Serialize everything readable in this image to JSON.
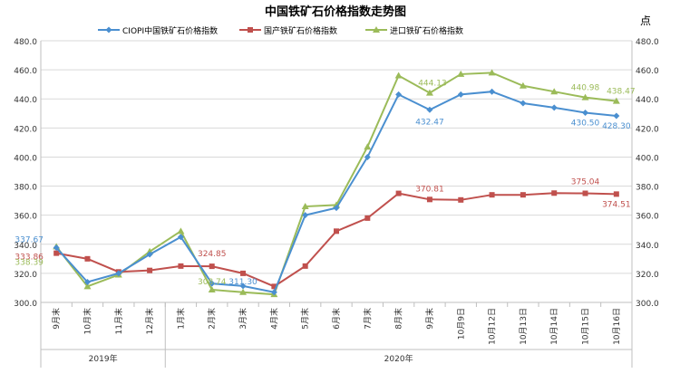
{
  "chart_data": {
    "type": "line",
    "title": "中国铁矿石价格指数走势图",
    "unit_label": "点",
    "categories": [
      "9月末",
      "10月末",
      "11月末",
      "12月末",
      "1月末",
      "2月末",
      "3月末",
      "4月末",
      "5月末",
      "6月末",
      "7月末",
      "8月末",
      "9月末",
      "10月9日",
      "10月12日",
      "10月13日",
      "10月14日",
      "10月15日",
      "10月16日"
    ],
    "year_groups": [
      {
        "label": "2019年",
        "start": 0,
        "end": 3
      },
      {
        "label": "2020年",
        "start": 4,
        "end": 18
      }
    ],
    "ylim": [
      300,
      480
    ],
    "yticks": [
      "300.0",
      "320.0",
      "340.0",
      "360.0",
      "380.0",
      "400.0",
      "420.0",
      "440.0",
      "460.0",
      "480.0"
    ],
    "grid": true,
    "legend_position": "top",
    "series": [
      {
        "name": "CIOPI中国铁矿石价格指数",
        "color": "#4a8fd0",
        "marker": "diamond",
        "values": [
          337.67,
          314,
          320,
          333,
          345,
          313,
          311.3,
          307,
          360,
          365,
          400,
          443,
          432.47,
          443,
          445,
          437,
          434,
          430.5,
          428.3
        ]
      },
      {
        "name": "国产铁矿石价格指数",
        "color": "#c0504d",
        "marker": "square",
        "values": [
          333.86,
          330,
          321,
          322,
          325,
          324.85,
          320,
          311,
          325,
          349,
          358,
          375,
          370.81,
          370.5,
          374,
          374,
          375.2,
          375.04,
          374.51
        ]
      },
      {
        "name": "进口铁矿石价格指数",
        "color": "#9bbb59",
        "marker": "triangle",
        "values": [
          338.39,
          311,
          319,
          335,
          349,
          308.74,
          307,
          305.5,
          366,
          367,
          407,
          456,
          444.13,
          457,
          458,
          449,
          445,
          440.98,
          438.47
        ]
      }
    ],
    "data_labels": [
      {
        "series": 0,
        "index": 0,
        "text": "337.67",
        "dx": -30,
        "dy": -6
      },
      {
        "series": 1,
        "index": 0,
        "text": "333.86",
        "dx": -30,
        "dy": 7
      },
      {
        "series": 2,
        "index": 0,
        "text": "338.39",
        "dx": -30,
        "dy": 20
      },
      {
        "series": 1,
        "index": 5,
        "text": "324.85",
        "dx": 0,
        "dy": -11
      },
      {
        "series": 2,
        "index": 5,
        "text": "308.74",
        "dx": 0,
        "dy": -6
      },
      {
        "series": 0,
        "index": 6,
        "text": "311.30",
        "dx": 0,
        "dy": -2
      },
      {
        "series": 2,
        "index": 12,
        "text": "444.13",
        "dx": 3,
        "dy": -8
      },
      {
        "series": 0,
        "index": 12,
        "text": "432.47",
        "dx": 0,
        "dy": 16
      },
      {
        "series": 1,
        "index": 12,
        "text": "370.81",
        "dx": 0,
        "dy": -9
      },
      {
        "series": 2,
        "index": 17,
        "text": "440.98",
        "dx": 0,
        "dy": -8
      },
      {
        "series": 0,
        "index": 17,
        "text": "430.50",
        "dx": 0,
        "dy": 14
      },
      {
        "series": 1,
        "index": 17,
        "text": "375.04",
        "dx": 0,
        "dy": -10
      },
      {
        "series": 2,
        "index": 18,
        "text": "438.47",
        "dx": 5,
        "dy": -8
      },
      {
        "series": 0,
        "index": 18,
        "text": "428.30",
        "dx": 0,
        "dy": 14
      },
      {
        "series": 1,
        "index": 18,
        "text": "374.51",
        "dx": 0,
        "dy": 14
      }
    ]
  }
}
